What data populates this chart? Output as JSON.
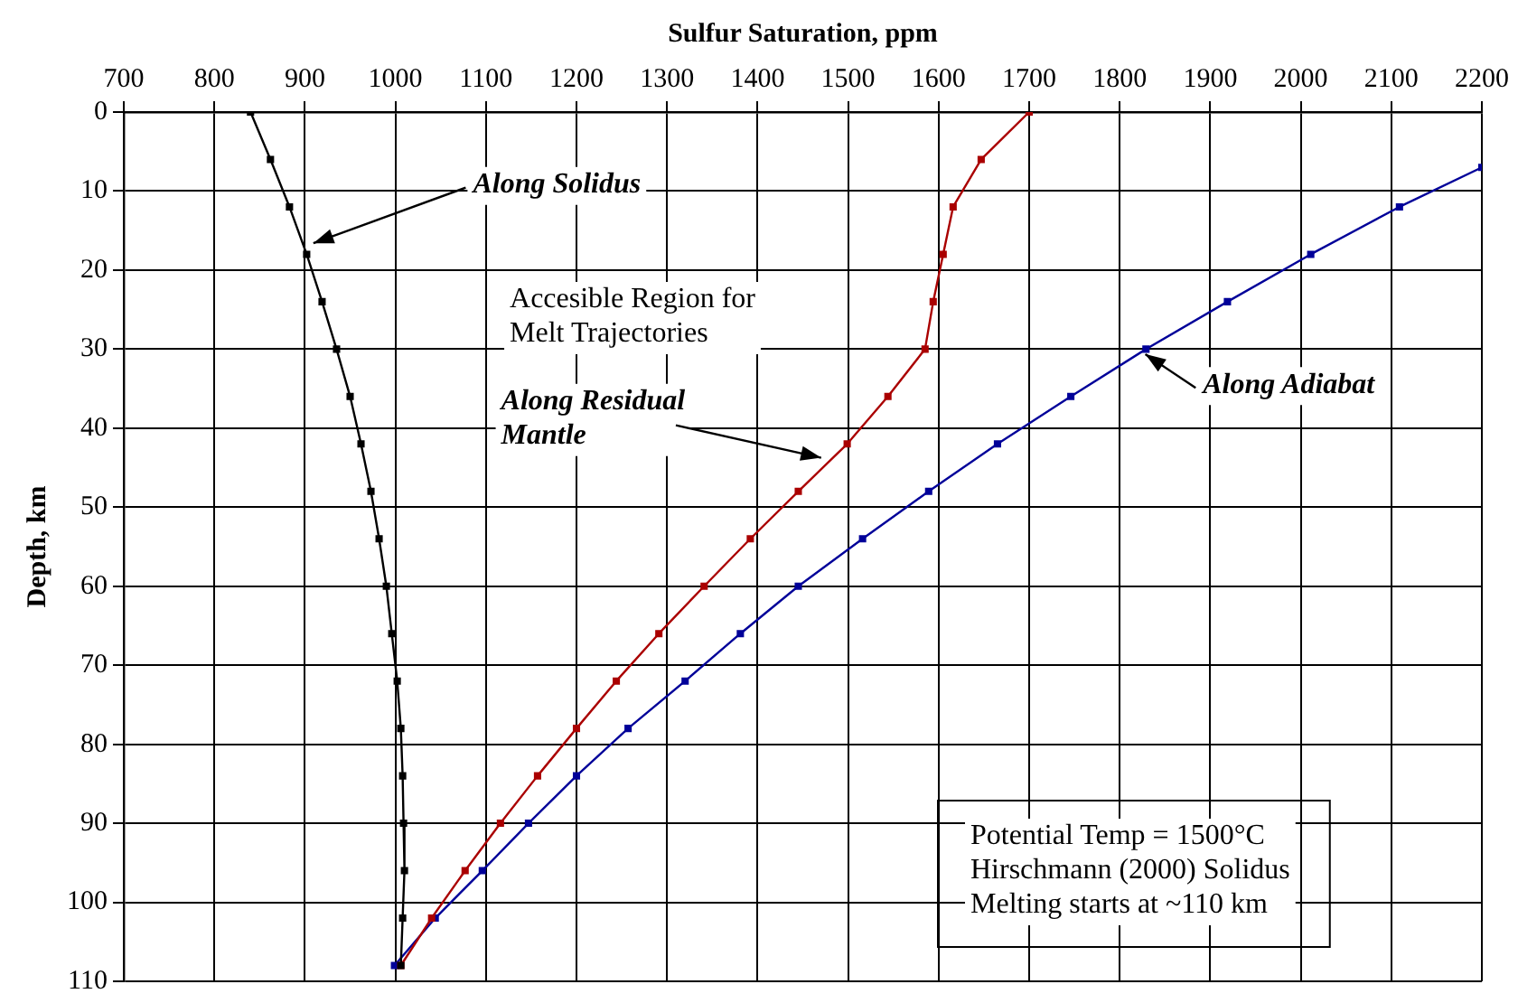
{
  "chart_data": {
    "type": "line",
    "xlabel": "Sulfur Saturation, ppm",
    "ylabel": "Depth, km",
    "xlim": [
      700,
      2200
    ],
    "xticks": [
      700,
      800,
      900,
      1000,
      1100,
      1200,
      1300,
      1400,
      1500,
      1600,
      1700,
      1800,
      1900,
      2000,
      2100,
      2200
    ],
    "ylim": [
      110,
      0
    ],
    "yticks": [
      0,
      10,
      20,
      30,
      40,
      50,
      60,
      70,
      80,
      90,
      100,
      110
    ],
    "grid": true,
    "legend": false,
    "marker": "square",
    "line_style": "solid",
    "series": [
      {
        "color": "#000000",
        "x": [
          840,
          862,
          883,
          902,
          919,
          935,
          950,
          962,
          973,
          982,
          990,
          996,
          1002,
          1006,
          1008,
          1009,
          1010,
          1008,
          1006
        ],
        "values": [
          0,
          6,
          12,
          18,
          24,
          30,
          36,
          42,
          48,
          54,
          60,
          66,
          72,
          78,
          84,
          90,
          96,
          102,
          108
        ]
      },
      {
        "color": "#aa0000",
        "x": [
          1700,
          1647,
          1616,
          1605,
          1594,
          1585,
          1544,
          1499,
          1445,
          1392,
          1341,
          1291,
          1244,
          1200,
          1157,
          1116,
          1077,
          1040,
          1006
        ],
        "values": [
          0,
          6,
          12,
          18,
          24,
          30,
          36,
          42,
          48,
          54,
          60,
          66,
          72,
          78,
          84,
          90,
          96,
          102,
          108
        ]
      },
      {
        "color": "#000099",
        "x": [
          2200,
          2109,
          2011,
          1919,
          1829,
          1746,
          1665,
          1589,
          1516,
          1445,
          1381,
          1320,
          1257,
          1200,
          1147,
          1096,
          1044,
          999
        ],
        "values": [
          7,
          12,
          18,
          24,
          30,
          36,
          42,
          48,
          54,
          60,
          66,
          72,
          78,
          84,
          90,
          96,
          102,
          108
        ]
      }
    ],
    "annotations": [
      {
        "text": "Along Solidus",
        "x": 900,
        "y": 17
      },
      "Accesible Region for\nMelt Trajectories",
      {
        "text": "Along Residual\nMantle",
        "x": 1480,
        "y": 44
      },
      {
        "text": "Along Adiabat",
        "x": 1820,
        "y": 30
      },
      "Potential Temp = 1500°C\nHirschmann (2000) Solidus\nMelting starts at ~110 km"
    ]
  }
}
